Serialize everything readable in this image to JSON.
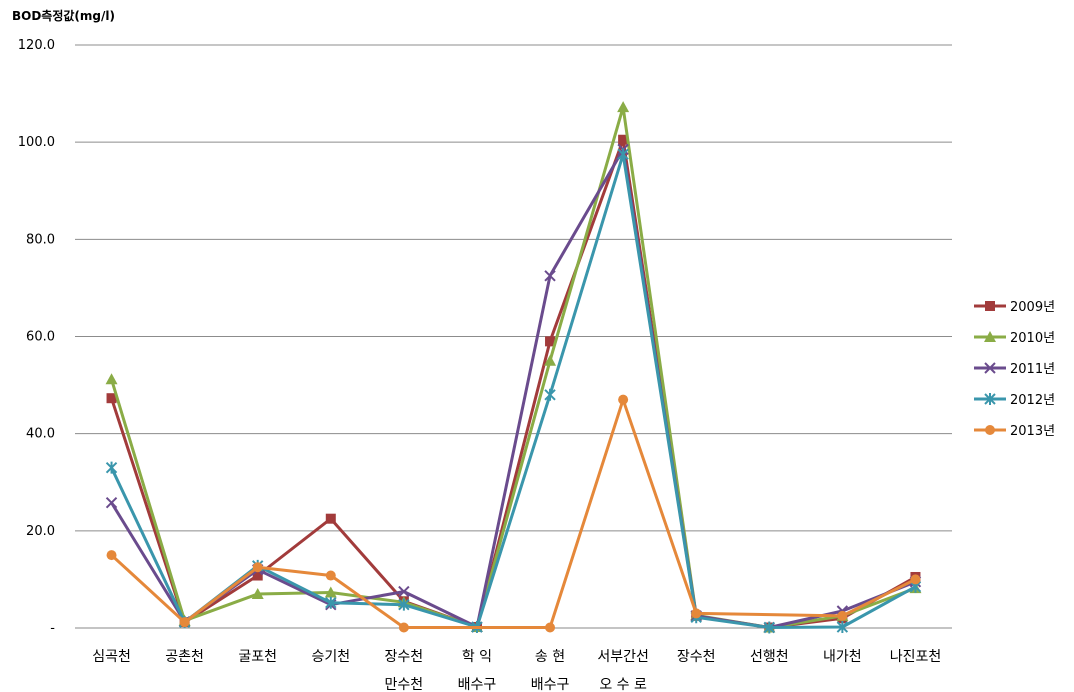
{
  "chart_data": {
    "type": "line",
    "ylabel": "BOD측정값(mg/l)",
    "xlabel": "",
    "ylim": [
      0,
      120
    ],
    "y_ticks": [
      "-",
      "20.0",
      "40.0",
      "60.0",
      "80.0",
      "100.0",
      "120.0"
    ],
    "grid": "horizontal",
    "legend_position": "right",
    "categories": [
      [
        "심곡천"
      ],
      [
        "공촌천"
      ],
      [
        "굴포천"
      ],
      [
        "승기천"
      ],
      [
        "장수천",
        "만수천"
      ],
      [
        "학  익",
        "배수구"
      ],
      [
        "송  현",
        "배수구"
      ],
      [
        "서부간선",
        "오 수 로"
      ],
      [
        "장수천"
      ],
      [
        "선행천"
      ],
      [
        "내가천"
      ],
      [
        "나진포천"
      ]
    ],
    "series": [
      {
        "name": "2009년",
        "color": "#a23b3b",
        "marker": "square",
        "values": [
          47.3,
          1.2,
          10.8,
          22.5,
          5.5,
          0.2,
          59.0,
          100.5,
          2.5,
          0.1,
          2.0,
          10.5
        ]
      },
      {
        "name": "2010년",
        "color": "#8aac46",
        "marker": "triangle",
        "values": [
          51.2,
          1.5,
          7.0,
          7.3,
          5.3,
          0.2,
          55.0,
          107.2,
          2.6,
          0.1,
          2.5,
          8.2
        ]
      },
      {
        "name": "2011년",
        "color": "#6a4b8d",
        "marker": "x",
        "values": [
          25.8,
          1.3,
          12.0,
          4.8,
          7.5,
          0.2,
          72.5,
          98.5,
          2.5,
          0.1,
          3.5,
          9.5
        ]
      },
      {
        "name": "2012년",
        "color": "#3a96ac",
        "marker": "star",
        "values": [
          33.0,
          1.2,
          12.8,
          5.2,
          4.8,
          0.2,
          48.0,
          97.5,
          2.2,
          0.1,
          0.2,
          8.5
        ]
      },
      {
        "name": "2013년",
        "color": "#e5883a",
        "marker": "circle",
        "values": [
          15.0,
          1.2,
          12.5,
          10.8,
          0.1,
          null,
          0.1,
          47.0,
          3.0,
          null,
          2.5,
          10.0
        ]
      }
    ]
  }
}
